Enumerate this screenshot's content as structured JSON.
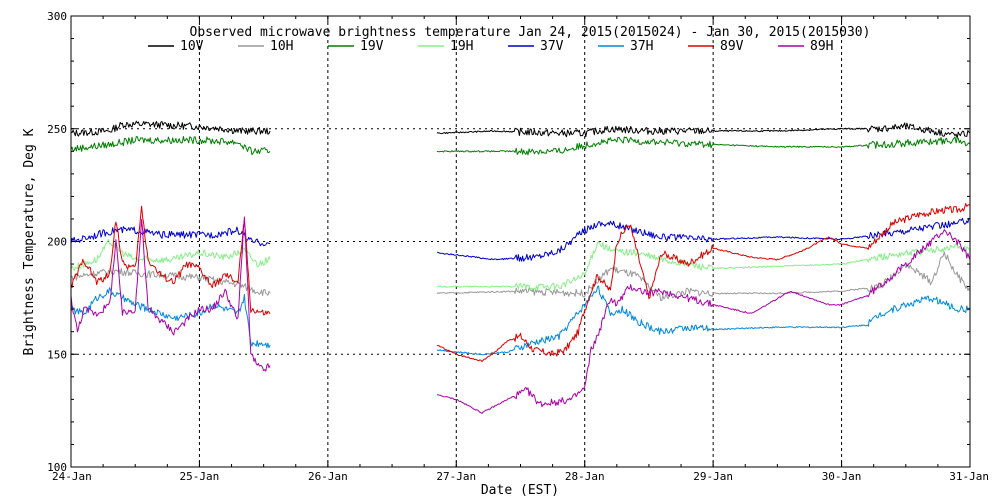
{
  "chart_data": {
    "type": "line",
    "title": "Observed microwave brightness temperature Jan 24, 2015(2015024) - Jan 30, 2015(2015030)",
    "xlabel": "Date (EST)",
    "ylabel": "Brightness Temperature, Deg K",
    "xlim": [
      0,
      7
    ],
    "ylim": [
      100,
      300
    ],
    "yticks": [
      100,
      150,
      200,
      250,
      300
    ],
    "xticks": [
      0,
      1,
      2,
      3,
      4,
      5,
      6,
      7
    ],
    "xtick_labels": [
      "24-Jan",
      "25-Jan",
      "26-Jan",
      "27-Jan",
      "28-Jan",
      "29-Jan",
      "30-Jan",
      "31-Jan"
    ],
    "grid": true,
    "legend_position": "top",
    "data_gap": [
      2.55,
      2.85
    ],
    "series": [
      {
        "name": "10V",
        "color": "#000000",
        "x": [
          0,
          0.3,
          0.4,
          0.6,
          1.0,
          1.2,
          1.3,
          1.5,
          1.55,
          2.85,
          3.3,
          3.8,
          4.0,
          4.2,
          4.5,
          5.0,
          5.5,
          6.0,
          6.3,
          6.5,
          6.7,
          6.9,
          7.0
        ],
        "y": [
          248,
          249,
          252,
          252,
          251,
          250,
          249,
          249,
          249,
          248,
          249,
          248,
          248,
          250,
          249,
          249,
          249,
          250,
          250,
          251,
          249,
          247,
          248
        ]
      },
      {
        "name": "10H",
        "color": "#999999",
        "x": [
          0,
          0.2,
          0.35,
          0.5,
          1.0,
          1.3,
          1.45,
          1.55,
          2.85,
          3.5,
          4.0,
          4.2,
          4.4,
          4.6,
          4.8,
          5.0,
          5.5,
          6.0,
          6.3,
          6.5,
          6.7,
          6.8,
          6.9,
          7.0
        ],
        "y": [
          184,
          186,
          187,
          186,
          184,
          181,
          178,
          177,
          177,
          178,
          177,
          188,
          185,
          175,
          178,
          177,
          177,
          178,
          180,
          190,
          182,
          195,
          185,
          178
        ]
      },
      {
        "name": "19V",
        "color": "#008000",
        "x": [
          0,
          0.3,
          0.5,
          0.7,
          1.0,
          1.3,
          1.4,
          1.55,
          2.85,
          3.5,
          3.8,
          4.1,
          4.3,
          4.6,
          5.0,
          5.5,
          6.0,
          6.3,
          6.6,
          6.9,
          7.0
        ],
        "y": [
          241,
          243,
          245,
          245,
          245,
          244,
          240,
          240,
          240,
          240,
          240,
          244,
          245,
          244,
          243,
          242,
          242,
          243,
          244,
          245,
          243
        ]
      },
      {
        "name": "19H",
        "color": "#88ee88",
        "x": [
          0,
          0.2,
          0.3,
          0.4,
          0.5,
          0.8,
          1.0,
          1.2,
          1.35,
          1.45,
          1.55,
          2.85,
          3.5,
          3.8,
          4.0,
          4.1,
          4.2,
          4.4,
          4.6,
          4.8,
          5.0,
          5.5,
          6.0,
          6.3,
          6.5,
          6.7,
          6.9,
          7.0
        ],
        "y": [
          188,
          192,
          200,
          195,
          192,
          192,
          195,
          193,
          196,
          190,
          192,
          180,
          180,
          180,
          185,
          200,
          196,
          195,
          192,
          190,
          188,
          189,
          190,
          193,
          195,
          196,
          198,
          196
        ]
      },
      {
        "name": "37V",
        "color": "#0000cc",
        "x": [
          0,
          0.2,
          0.35,
          0.5,
          0.7,
          0.9,
          1.1,
          1.3,
          1.4,
          1.55,
          2.85,
          3.3,
          3.6,
          3.8,
          4.0,
          4.1,
          4.2,
          4.4,
          4.6,
          5.0,
          5.5,
          6.0,
          6.3,
          6.6,
          6.9,
          7.0
        ],
        "y": [
          200,
          203,
          205,
          205,
          203,
          203,
          203,
          205,
          200,
          199,
          195,
          192,
          193,
          196,
          205,
          208,
          208,
          205,
          202,
          201,
          202,
          201,
          203,
          206,
          208,
          210
        ]
      },
      {
        "name": "37H",
        "color": "#0088dd",
        "x": [
          0,
          0.1,
          0.2,
          0.3,
          0.4,
          0.5,
          0.6,
          0.7,
          0.8,
          0.9,
          1.0,
          1.1,
          1.2,
          1.3,
          1.35,
          1.4,
          1.5,
          1.55,
          2.85,
          3.0,
          3.2,
          3.4,
          3.5,
          3.6,
          3.8,
          3.9,
          4.0,
          4.1,
          4.2,
          4.3,
          4.4,
          4.5,
          4.6,
          4.8,
          5.0,
          5.5,
          6.0,
          6.2,
          6.3,
          6.5,
          6.7,
          6.9,
          7.0
        ],
        "y": [
          170,
          168,
          175,
          178,
          175,
          172,
          170,
          168,
          166,
          167,
          168,
          172,
          170,
          168,
          175,
          155,
          155,
          154,
          152,
          151,
          150,
          151,
          153,
          155,
          158,
          165,
          172,
          180,
          168,
          170,
          165,
          162,
          160,
          162,
          161,
          162,
          162,
          163,
          168,
          172,
          175,
          170,
          170
        ]
      },
      {
        "name": "89V",
        "color": "#dd0000",
        "x": [
          0,
          0.1,
          0.2,
          0.3,
          0.35,
          0.4,
          0.5,
          0.55,
          0.6,
          0.7,
          0.8,
          0.9,
          1.0,
          1.1,
          1.2,
          1.3,
          1.35,
          1.4,
          1.5,
          1.55,
          2.85,
          3.0,
          3.2,
          3.3,
          3.4,
          3.5,
          3.6,
          3.75,
          3.85,
          3.95,
          4.0,
          4.05,
          4.1,
          4.2,
          4.25,
          4.35,
          4.5,
          4.6,
          4.8,
          5.0,
          5.3,
          5.5,
          5.7,
          5.9,
          6.0,
          6.2,
          6.4,
          6.6,
          6.8,
          6.9,
          7.0
        ],
        "y": [
          180,
          192,
          182,
          185,
          210,
          190,
          188,
          215,
          192,
          185,
          182,
          190,
          188,
          180,
          185,
          182,
          210,
          170,
          168,
          168,
          154,
          150,
          147,
          151,
          156,
          158,
          152,
          150,
          152,
          160,
          170,
          178,
          185,
          178,
          200,
          208,
          175,
          195,
          190,
          197,
          193,
          192,
          196,
          202,
          199,
          197,
          208,
          212,
          214,
          214,
          216
        ]
      },
      {
        "name": "89H",
        "color": "#aa00aa",
        "x": [
          0,
          0.05,
          0.1,
          0.2,
          0.3,
          0.35,
          0.4,
          0.5,
          0.55,
          0.6,
          0.7,
          0.8,
          0.9,
          1.0,
          1.1,
          1.2,
          1.3,
          1.35,
          1.4,
          1.45,
          1.5,
          1.55,
          2.85,
          3.0,
          3.2,
          3.4,
          3.55,
          3.65,
          3.8,
          3.9,
          4.0,
          4.05,
          4.1,
          4.2,
          4.25,
          4.35,
          4.5,
          4.6,
          4.8,
          5.0,
          5.3,
          5.6,
          5.9,
          6.0,
          6.2,
          6.4,
          6.6,
          6.8,
          6.9,
          7.0
        ],
        "y": [
          175,
          160,
          170,
          168,
          172,
          200,
          168,
          170,
          210,
          170,
          165,
          160,
          165,
          170,
          170,
          178,
          165,
          212,
          150,
          145,
          143,
          145,
          132,
          130,
          124,
          130,
          134,
          128,
          129,
          130,
          135,
          152,
          158,
          175,
          172,
          180,
          177,
          178,
          175,
          172,
          168,
          178,
          172,
          172,
          176,
          185,
          195,
          205,
          200,
          192
        ]
      }
    ]
  },
  "legend": {
    "items": [
      "10V",
      "10H",
      "19V",
      "19H",
      "37V",
      "37H",
      "89V",
      "89H"
    ]
  }
}
